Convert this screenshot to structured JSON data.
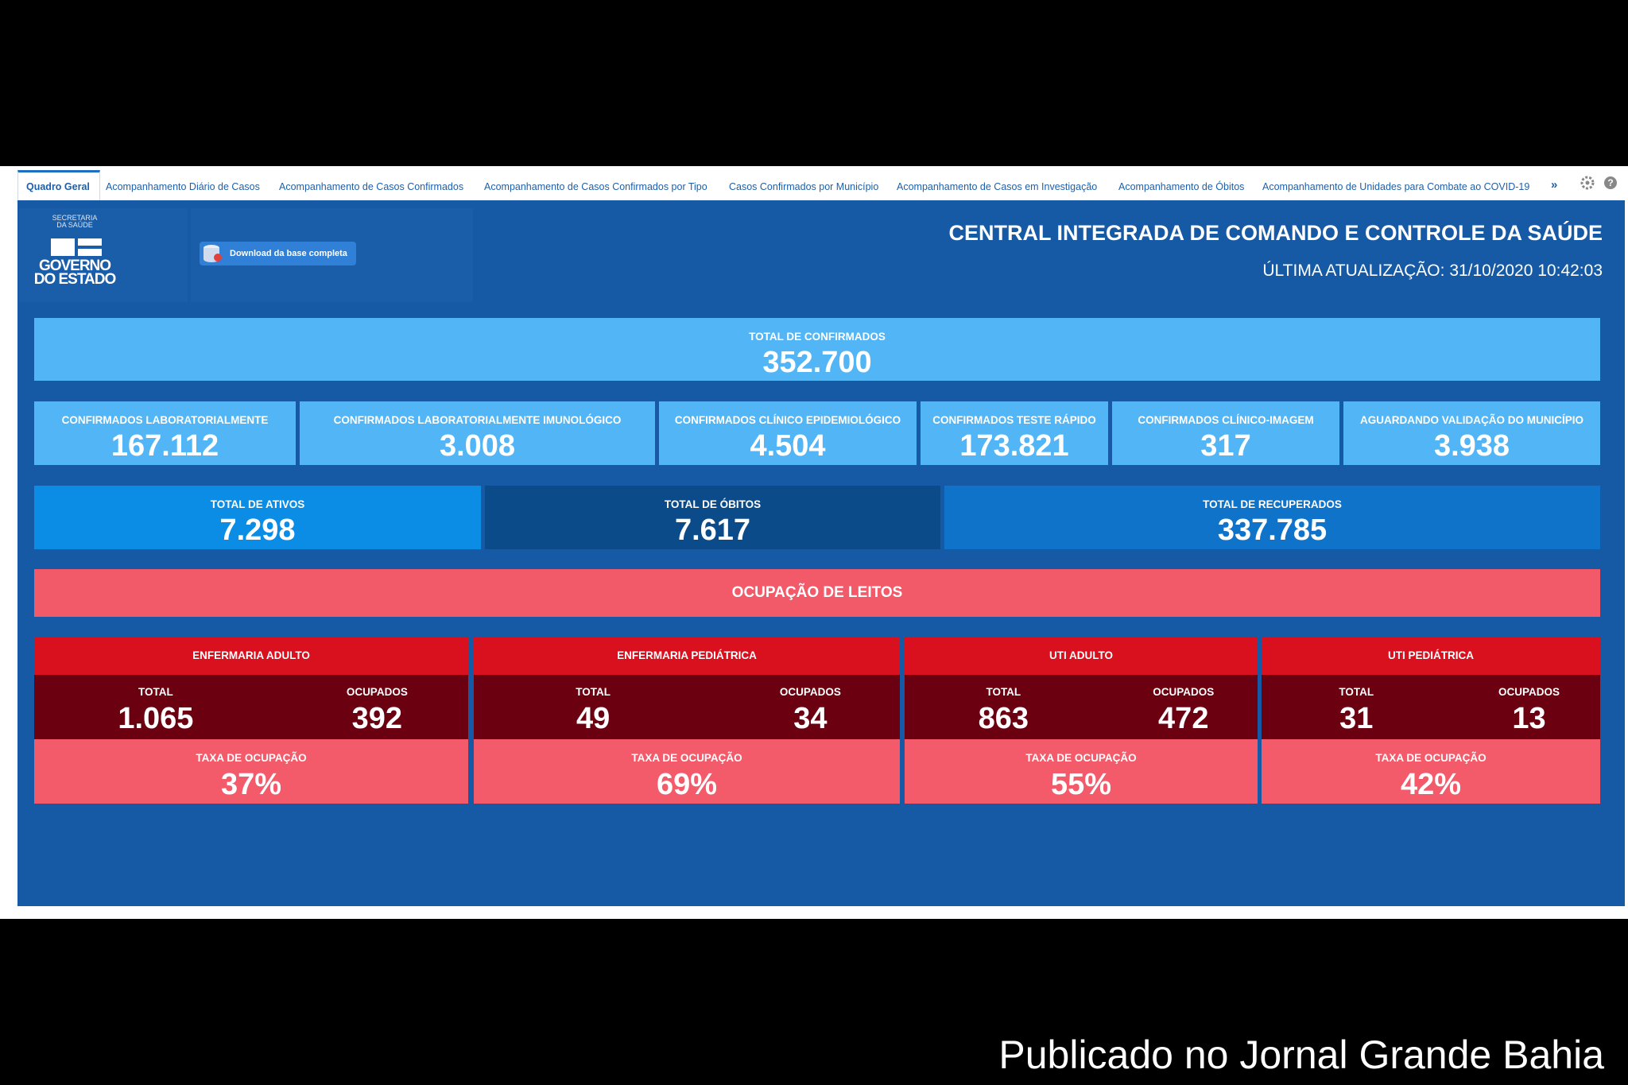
{
  "tabs": [
    "Quadro Geral",
    "Acompanhamento Diário de Casos",
    "Acompanhamento de Casos Confirmados",
    "Acompanhamento de Casos Confirmados por Tipo",
    "Casos Confirmados por Município",
    "Acompanhamento de Casos em Investigação",
    "Acompanhamento de Óbitos",
    "Acompanhamento de Unidades para Combate ao COVID-19"
  ],
  "tabs_more": "»",
  "logo": {
    "top": [
      "SECRETARIA",
      "DA SAÚDE"
    ],
    "bottom": [
      "GOVERNO",
      "DO ESTADO"
    ]
  },
  "download_button": "Download da base completa",
  "header": {
    "title": "CENTRAL INTEGRADA DE COMANDO E CONTROLE DA SAÚDE",
    "updated": "ÚLTIMA ATUALIZAÇÃO: 31/10/2020 10:42:03"
  },
  "total_confirmed": {
    "label": "TOTAL DE CONFIRMADOS",
    "value": "352.700"
  },
  "confirmed_breakdown": [
    {
      "label": "CONFIRMADOS LABORATORIALMENTE",
      "value": "167.112"
    },
    {
      "label": "CONFIRMADOS LABORATORIALMENTE IMUNOLÓGICO",
      "value": "3.008"
    },
    {
      "label": "CONFIRMADOS CLÍNICO EPIDEMIOLÓGICO",
      "value": "4.504"
    },
    {
      "label": "CONFIRMADOS TESTE RÁPIDO",
      "value": "173.821"
    },
    {
      "label": "CONFIRMADOS CLÍNICO-IMAGEM",
      "value": "317"
    },
    {
      "label": "AGUARDANDO VALIDAÇÃO DO MUNICÍPIO",
      "value": "3.938"
    }
  ],
  "status": [
    {
      "label": "TOTAL DE ATIVOS",
      "value": "7.298"
    },
    {
      "label": "TOTAL DE ÓBITOS",
      "value": "7.617"
    },
    {
      "label": "TOTAL DE RECUPERADOS",
      "value": "337.785"
    }
  ],
  "beds_title": "OCUPAÇÃO DE LEITOS",
  "beds": [
    {
      "name": "ENFERMARIA ADULTO",
      "total_label": "TOTAL",
      "total": "1.065",
      "occupied_label": "OCUPADOS",
      "occupied": "392",
      "rate_label": "TAXA DE OCUPAÇÃO",
      "rate": "37%"
    },
    {
      "name": "ENFERMARIA PEDIÁTRICA",
      "total_label": "TOTAL",
      "total": "49",
      "occupied_label": "OCUPADOS",
      "occupied": "34",
      "rate_label": "TAXA DE OCUPAÇÃO",
      "rate": "69%"
    },
    {
      "name": "UTI ADULTO",
      "total_label": "TOTAL",
      "total": "863",
      "occupied_label": "OCUPADOS",
      "occupied": "472",
      "rate_label": "TAXA DE OCUPAÇÃO",
      "rate": "55%"
    },
    {
      "name": "UTI PEDIÁTRICA",
      "total_label": "TOTAL",
      "total": "31",
      "occupied_label": "OCUPADOS",
      "occupied": "13",
      "rate_label": "TAXA DE OCUPAÇÃO",
      "rate": "42%"
    }
  ],
  "caption": "Publicado no Jornal Grande Bahia"
}
